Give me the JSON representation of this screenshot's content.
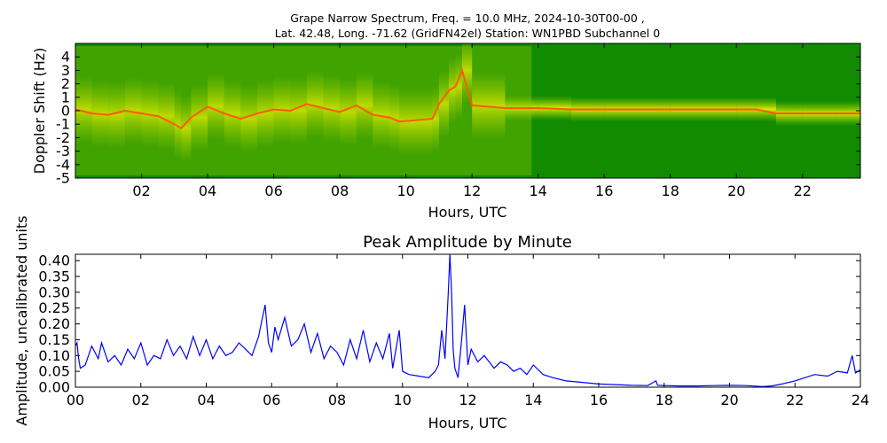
{
  "figure": {
    "title_line1": "Grape Narrow Spectrum, Freq. = 10.0 MHz, 2024-10-30T00-00 ,",
    "title_line2": "Lat.  42.48, Long. -71.62 (GridFN42el) Station: WN1PBD Subchannel 0"
  },
  "chart_data": [
    {
      "type": "heatmap",
      "title": "",
      "xlabel": "Hours, UTC",
      "ylabel": "Doppler Shift (Hz)",
      "xlim": [
        0,
        23.75
      ],
      "ylim": [
        -5,
        5
      ],
      "x_ticks": [
        "02",
        "04",
        "06",
        "08",
        "10",
        "12",
        "14",
        "16",
        "18",
        "20",
        "22"
      ],
      "x_tick_values": [
        2,
        4,
        6,
        8,
        10,
        12,
        14,
        16,
        18,
        20,
        22
      ],
      "y_ticks": [
        "4",
        "3",
        "2",
        "1",
        "0",
        "-1",
        "-2",
        "-3",
        "-4",
        "-5"
      ],
      "y_tick_values": [
        4,
        3,
        2,
        1,
        0,
        -1,
        -2,
        -3,
        -4,
        -5
      ],
      "colors": {
        "background": "#118c00",
        "mid": "#9acd00",
        "high": "#f0f000",
        "peak": "#ff5a00"
      },
      "peak_trace": {
        "x": [
          0,
          0.5,
          1,
          1.5,
          2,
          2.5,
          3,
          3.2,
          3.5,
          4,
          4.5,
          5,
          5.5,
          6,
          6.5,
          7,
          7.5,
          8,
          8.5,
          9,
          9.5,
          9.8,
          10.8,
          11,
          11.3,
          11.5,
          11.7,
          12,
          13,
          14,
          15,
          16,
          17,
          18,
          19,
          20,
          20.6,
          21.2,
          22,
          23,
          23.75
        ],
        "y": [
          0.1,
          -0.2,
          -0.3,
          0,
          -0.2,
          -0.4,
          -1.0,
          -1.3,
          -0.5,
          0.3,
          -0.2,
          -0.6,
          -0.2,
          0.1,
          0,
          0.5,
          0.2,
          -0.1,
          0.4,
          -0.3,
          -0.5,
          -0.8,
          -0.6,
          0.5,
          1.5,
          1.8,
          3.0,
          0.4,
          0.2,
          0.2,
          0.1,
          0.1,
          0.1,
          0.1,
          0.1,
          0.1,
          0.1,
          -0.2,
          -0.2,
          -0.2,
          -0.2
        ]
      }
    },
    {
      "type": "line",
      "title": "Peak Amplitude by Minute",
      "xlabel": "Hours, UTC",
      "ylabel": "Amplitude, uncalibrated units",
      "xlim": [
        0,
        24
      ],
      "ylim": [
        0,
        0.42
      ],
      "x_ticks": [
        "00",
        "02",
        "04",
        "06",
        "08",
        "10",
        "12",
        "14",
        "16",
        "18",
        "20",
        "22",
        "24"
      ],
      "x_tick_values": [
        0,
        2,
        4,
        6,
        8,
        10,
        12,
        14,
        16,
        18,
        20,
        22,
        24
      ],
      "y_ticks": [
        "0.40",
        "0.35",
        "0.30",
        "0.25",
        "0.20",
        "0.15",
        "0.10",
        "0.05",
        "0.00"
      ],
      "y_tick_values": [
        0.4,
        0.35,
        0.3,
        0.25,
        0.2,
        0.15,
        0.1,
        0.05,
        0.0
      ],
      "grid": false,
      "line_color": "#0000ff",
      "series": [
        {
          "x": [
            0,
            0.05,
            0.1,
            0.15,
            0.3,
            0.5,
            0.7,
            0.8,
            1.0,
            1.2,
            1.4,
            1.6,
            1.8,
            2.0,
            2.2,
            2.4,
            2.6,
            2.8,
            3.0,
            3.2,
            3.4,
            3.6,
            3.8,
            4.0,
            4.2,
            4.4,
            4.6,
            4.8,
            5.0,
            5.2,
            5.4,
            5.6,
            5.8,
            5.9,
            6.0,
            6.1,
            6.2,
            6.4,
            6.6,
            6.8,
            7.0,
            7.2,
            7.4,
            7.6,
            7.8,
            8.0,
            8.2,
            8.4,
            8.6,
            8.8,
            9.0,
            9.2,
            9.4,
            9.6,
            9.7,
            9.8,
            9.9,
            10.0,
            10.2,
            10.5,
            10.8,
            11.0,
            11.1,
            11.2,
            11.3,
            11.4,
            11.45,
            11.5,
            11.55,
            11.6,
            11.7,
            11.8,
            11.9,
            12.0,
            12.1,
            12.3,
            12.5,
            12.8,
            13.0,
            13.2,
            13.4,
            13.6,
            13.8,
            14.0,
            14.3,
            14.6,
            15.0,
            15.5,
            16.0,
            16.5,
            17.0,
            17.5,
            17.75,
            17.8,
            18.0,
            18.5,
            19.0,
            19.5,
            20.0,
            20.5,
            21.0,
            21.3,
            21.6,
            22.0,
            22.3,
            22.6,
            23.0,
            23.3,
            23.6,
            23.75,
            23.85,
            24.0
          ],
          "y": [
            0.13,
            0.14,
            0.09,
            0.06,
            0.07,
            0.13,
            0.09,
            0.14,
            0.08,
            0.1,
            0.07,
            0.12,
            0.09,
            0.14,
            0.07,
            0.1,
            0.09,
            0.15,
            0.1,
            0.13,
            0.09,
            0.16,
            0.1,
            0.15,
            0.09,
            0.13,
            0.1,
            0.11,
            0.14,
            0.12,
            0.1,
            0.16,
            0.26,
            0.14,
            0.11,
            0.19,
            0.15,
            0.22,
            0.13,
            0.15,
            0.2,
            0.11,
            0.17,
            0.09,
            0.13,
            0.11,
            0.07,
            0.15,
            0.09,
            0.18,
            0.08,
            0.14,
            0.09,
            0.17,
            0.06,
            0.12,
            0.18,
            0.05,
            0.04,
            0.035,
            0.03,
            0.05,
            0.07,
            0.18,
            0.09,
            0.3,
            0.42,
            0.3,
            0.12,
            0.06,
            0.03,
            0.14,
            0.26,
            0.07,
            0.12,
            0.08,
            0.1,
            0.06,
            0.08,
            0.07,
            0.05,
            0.06,
            0.04,
            0.07,
            0.04,
            0.03,
            0.02,
            0.015,
            0.01,
            0.008,
            0.006,
            0.005,
            0.02,
            0.006,
            0.005,
            0.004,
            0.004,
            0.005,
            0.006,
            0.005,
            0.002,
            0.004,
            0.01,
            0.02,
            0.03,
            0.04,
            0.035,
            0.05,
            0.045,
            0.1,
            0.045,
            0.055
          ]
        }
      ]
    }
  ]
}
